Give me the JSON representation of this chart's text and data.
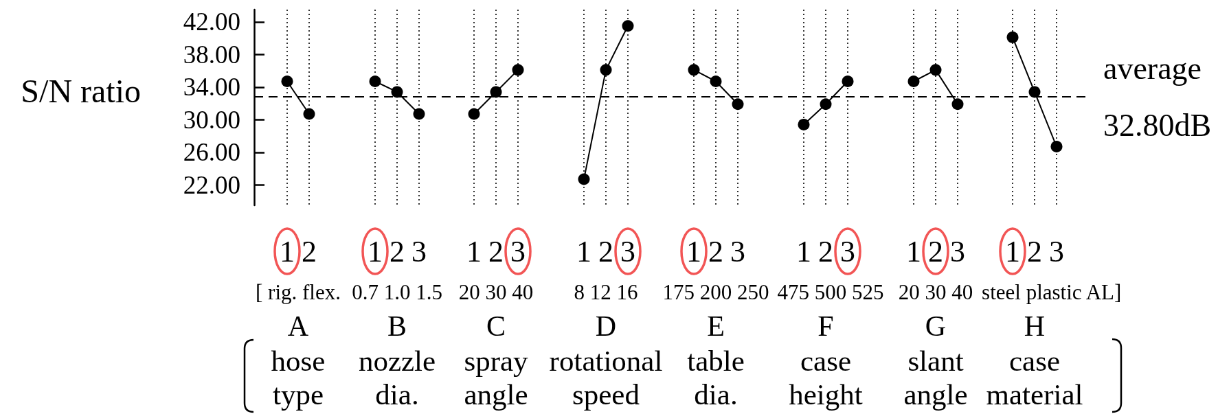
{
  "chart_data": {
    "type": "line",
    "ylabel": "S/N ratio",
    "categories": [
      null,
      null,
      null,
      "1",
      null,
      "2",
      null,
      null,
      null,
      null,
      null,
      "1",
      null,
      "2",
      null,
      "3",
      null,
      null,
      null,
      null,
      "1",
      null,
      "2",
      null,
      "3",
      null,
      null,
      null,
      null,
      null,
      "1",
      null,
      "2",
      null,
      "3",
      null,
      null,
      null,
      null,
      null,
      "1",
      null,
      "2",
      null,
      "3",
      null,
      null,
      null,
      null,
      null,
      "1",
      null,
      "2",
      null,
      "3",
      null,
      null,
      null,
      null,
      null,
      "1",
      null,
      "2",
      null,
      "3",
      null,
      null,
      null,
      null,
      "1",
      null,
      "2",
      null,
      "3",
      null,
      null,
      null
    ],
    "series": [
      {
        "color": "#000000",
        "values": [
          null,
          null,
          null,
          34.7,
          null,
          30.7,
          null,
          null,
          null,
          null,
          null,
          null,
          null,
          null,
          null,
          null,
          null,
          null,
          null,
          null,
          null,
          null,
          null,
          null,
          null,
          null,
          null,
          null,
          null,
          null,
          null,
          null,
          null,
          null,
          null,
          null,
          null,
          null,
          null,
          null,
          null,
          null,
          null,
          null,
          null,
          null,
          null,
          null,
          null,
          null,
          null,
          null,
          null,
          null,
          null,
          null,
          null,
          null,
          null,
          null,
          null,
          null,
          null,
          null,
          null,
          null,
          null,
          null,
          null,
          null,
          null,
          null,
          null,
          null,
          null,
          null,
          null
        ]
      },
      {
        "color": "#000000",
        "values": [
          null,
          null,
          null,
          null,
          null,
          null,
          null,
          null,
          null,
          null,
          null,
          34.7,
          null,
          33.4,
          null,
          30.7,
          null,
          null,
          null,
          null,
          null,
          null,
          null,
          null,
          null,
          null,
          null,
          null,
          null,
          null,
          null,
          null,
          null,
          null,
          null,
          null,
          null,
          null,
          null,
          null,
          null,
          null,
          null,
          null,
          null,
          null,
          null,
          null,
          null,
          null,
          null,
          null,
          null,
          null,
          null,
          null,
          null,
          null,
          null,
          null,
          null,
          null,
          null,
          null,
          null,
          null,
          null,
          null,
          null,
          null,
          null,
          null,
          null,
          null,
          null,
          null,
          null
        ]
      },
      {
        "color": "#000000",
        "values": [
          null,
          null,
          null,
          null,
          null,
          null,
          null,
          null,
          null,
          null,
          null,
          null,
          null,
          null,
          null,
          null,
          null,
          null,
          null,
          null,
          30.7,
          null,
          33.4,
          null,
          36.1,
          null,
          null,
          null,
          null,
          null,
          null,
          null,
          null,
          null,
          null,
          null,
          null,
          null,
          null,
          null,
          null,
          null,
          null,
          null,
          null,
          null,
          null,
          null,
          null,
          null,
          null,
          null,
          null,
          null,
          null,
          null,
          null,
          null,
          null,
          null,
          null,
          null,
          null,
          null,
          null,
          null,
          null,
          null,
          null,
          null,
          null,
          null,
          null,
          null,
          null,
          null,
          null
        ]
      },
      {
        "color": "#000000",
        "values": [
          null,
          null,
          null,
          null,
          null,
          null,
          null,
          null,
          null,
          null,
          null,
          null,
          null,
          null,
          null,
          null,
          null,
          null,
          null,
          null,
          null,
          null,
          null,
          null,
          null,
          null,
          null,
          null,
          null,
          null,
          22.7,
          null,
          36.1,
          null,
          41.5,
          null,
          null,
          null,
          null,
          null,
          null,
          null,
          null,
          null,
          null,
          null,
          null,
          null,
          null,
          null,
          null,
          null,
          null,
          null,
          null,
          null,
          null,
          null,
          null,
          null,
          null,
          null,
          null,
          null,
          null,
          null,
          null,
          null,
          null,
          null,
          null,
          null,
          null,
          null,
          null,
          null,
          null
        ]
      },
      {
        "color": "#000000",
        "values": [
          null,
          null,
          null,
          null,
          null,
          null,
          null,
          null,
          null,
          null,
          null,
          null,
          null,
          null,
          null,
          null,
          null,
          null,
          null,
          null,
          null,
          null,
          null,
          null,
          null,
          null,
          null,
          null,
          null,
          null,
          null,
          null,
          null,
          null,
          null,
          null,
          null,
          null,
          null,
          null,
          36.1,
          null,
          34.7,
          null,
          31.9,
          null,
          null,
          null,
          null,
          null,
          null,
          null,
          null,
          null,
          null,
          null,
          null,
          null,
          null,
          null,
          null,
          null,
          null,
          null,
          null,
          null,
          null,
          null,
          null,
          null,
          null,
          null,
          null,
          null,
          null,
          null,
          null
        ]
      },
      {
        "color": "#000000",
        "values": [
          null,
          null,
          null,
          null,
          null,
          null,
          null,
          null,
          null,
          null,
          null,
          null,
          null,
          null,
          null,
          null,
          null,
          null,
          null,
          null,
          null,
          null,
          null,
          null,
          null,
          null,
          null,
          null,
          null,
          null,
          null,
          null,
          null,
          null,
          null,
          null,
          null,
          null,
          null,
          null,
          null,
          null,
          null,
          null,
          null,
          null,
          null,
          null,
          null,
          null,
          29.4,
          null,
          31.9,
          null,
          34.7,
          null,
          null,
          null,
          null,
          null,
          null,
          null,
          null,
          null,
          null,
          null,
          null,
          null,
          null,
          null,
          null,
          null,
          null,
          null,
          null,
          null,
          null
        ]
      },
      {
        "color": "#000000",
        "values": [
          null,
          null,
          null,
          null,
          null,
          null,
          null,
          null,
          null,
          null,
          null,
          null,
          null,
          null,
          null,
          null,
          null,
          null,
          null,
          null,
          null,
          null,
          null,
          null,
          null,
          null,
          null,
          null,
          null,
          null,
          null,
          null,
          null,
          null,
          null,
          null,
          null,
          null,
          null,
          null,
          null,
          null,
          null,
          null,
          null,
          null,
          null,
          null,
          null,
          null,
          null,
          null,
          null,
          null,
          null,
          null,
          null,
          null,
          null,
          null,
          34.7,
          null,
          36.1,
          null,
          31.9,
          null,
          null,
          null,
          null,
          null,
          null,
          null,
          null,
          null,
          null,
          null,
          null
        ]
      },
      {
        "color": "#000000",
        "values": [
          null,
          null,
          null,
          null,
          null,
          null,
          null,
          null,
          null,
          null,
          null,
          null,
          null,
          null,
          null,
          null,
          null,
          null,
          null,
          null,
          null,
          null,
          null,
          null,
          null,
          null,
          null,
          null,
          null,
          null,
          null,
          null,
          null,
          null,
          null,
          null,
          null,
          null,
          null,
          null,
          null,
          null,
          null,
          null,
          null,
          null,
          null,
          null,
          null,
          null,
          null,
          null,
          null,
          null,
          null,
          null,
          null,
          null,
          null,
          null,
          null,
          null,
          null,
          null,
          null,
          null,
          null,
          null,
          null,
          40.1,
          null,
          33.4,
          null,
          26.7,
          null,
          null,
          null
        ]
      }
    ],
    "ylim": [
      19.5,
      43.5
    ],
    "yticks": [
      {
        "value": 22,
        "label": "22.00"
      },
      {
        "value": 26,
        "label": "26.00"
      },
      {
        "value": 30,
        "label": "30.00"
      },
      {
        "value": 34,
        "label": "34.00"
      },
      {
        "value": 38,
        "label": "38.00"
      },
      {
        "value": 42,
        "label": "42.00"
      }
    ],
    "grid": "x",
    "marker": "circle",
    "ref_lines": [
      {
        "axis": "y",
        "value": 32.8,
        "label": "average\n32.80dB",
        "line_style": "dashed",
        "color": "#000000"
      }
    ],
    "annotations": [
      "[ rig. flex.",
      "0.7 1.0 1.5",
      "20 30 40",
      "8 12 16",
      "175 200 250",
      "475 500 525",
      "20 30 40",
      "steel plastic AL]",
      "A",
      "B",
      "C",
      "D",
      "E",
      "F",
      "G",
      "H",
      "hose\ntype",
      "nozzle\ndia.",
      "spray\nangle",
      "rotational\nspeed",
      "table\ndia.",
      "case\nheight",
      "slant\nangle",
      "case\nmaterial"
    ]
  }
}
